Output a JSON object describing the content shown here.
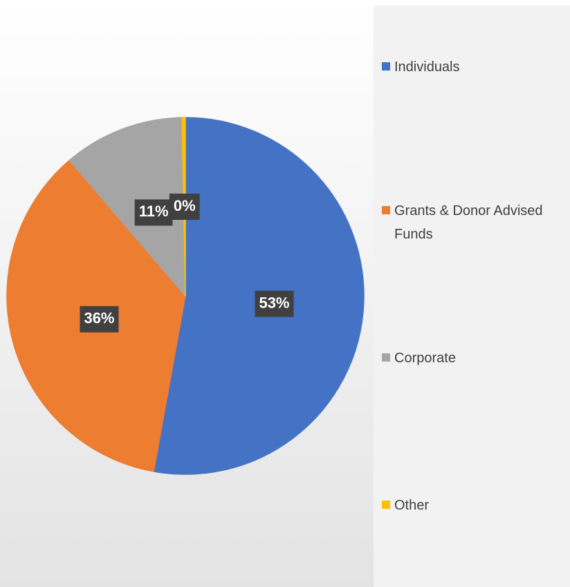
{
  "chart_data": {
    "type": "pie",
    "categories": [
      "Individuals",
      "Grants & Donor Advised Funds",
      "Corporate",
      "Other"
    ],
    "values": [
      53,
      36,
      11,
      0.3
    ],
    "value_labels": [
      "53%",
      "36%",
      "11%",
      "0%"
    ],
    "colors": [
      "#4472c4",
      "#ed7d31",
      "#a5a5a5",
      "#ffc000"
    ],
    "legend": "right"
  }
}
